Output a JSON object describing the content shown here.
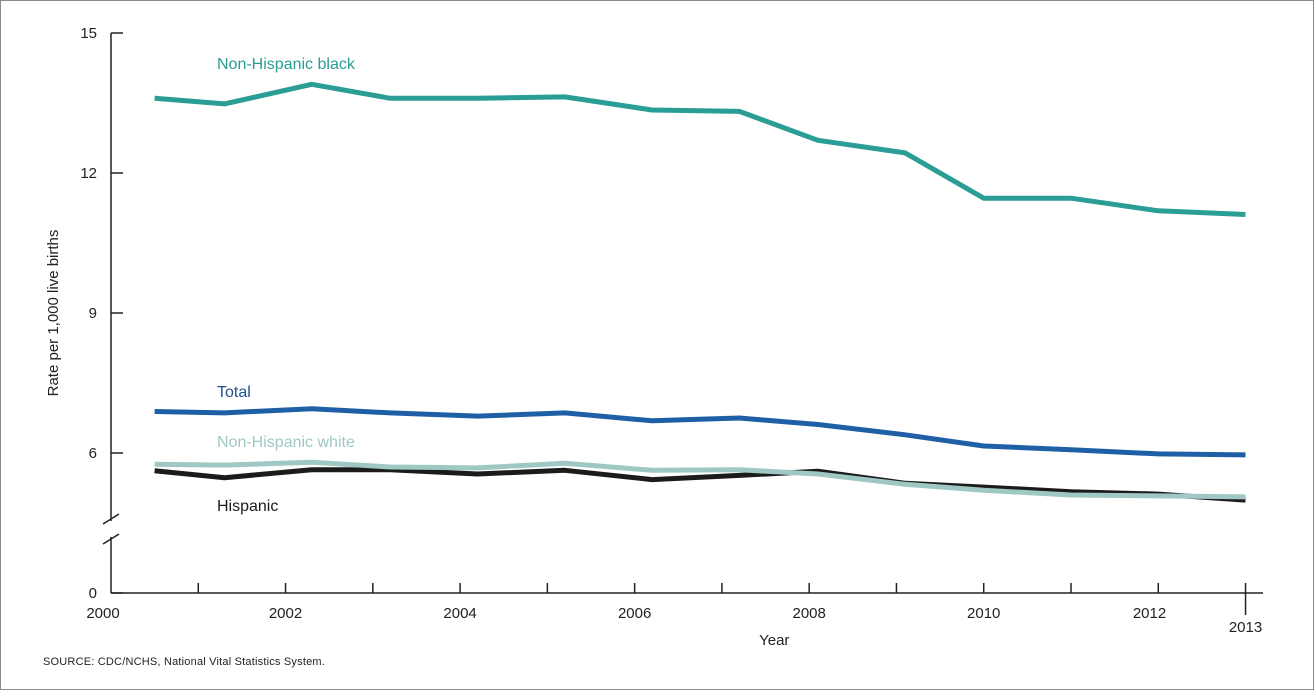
{
  "chart_data": {
    "type": "line",
    "title": "",
    "xlabel": "Year",
    "ylabel": "Rate per 1,000 live births",
    "x": [
      2000.5,
      2001.3,
      2002.3,
      2003.2,
      2004.2,
      2005.2,
      2006.2,
      2007.2,
      2008.1,
      2009.1,
      2010.0,
      2011.0,
      2012.0,
      2013.0
    ],
    "xlim": [
      2000,
      2013.2
    ],
    "x_ticks": [
      "2000",
      "2002",
      "2004",
      "2006",
      "2008",
      "2010",
      "2012",
      "2013"
    ],
    "ylim": [
      0,
      15
    ],
    "y_ticks": [
      "0",
      "6",
      "9",
      "12",
      "15"
    ],
    "y_axis_break": "between 0 and 6",
    "grid": false,
    "legend": "inline labels next to lines",
    "series": [
      {
        "name": "Non-Hispanic black",
        "color": "#2a9d94",
        "values": [
          13.6,
          13.48,
          13.9,
          13.6,
          13.6,
          13.63,
          13.35,
          13.32,
          12.7,
          12.43,
          11.46,
          11.46,
          11.19,
          11.11
        ]
      },
      {
        "name": "Total",
        "color": "#1f5fa6",
        "values": [
          6.89,
          6.86,
          6.95,
          6.86,
          6.79,
          6.86,
          6.69,
          6.75,
          6.61,
          6.39,
          6.15,
          6.07,
          5.98,
          5.96
        ]
      },
      {
        "name": "Non-Hispanic white",
        "color": "#9fc8c3",
        "values": [
          5.76,
          5.74,
          5.8,
          5.7,
          5.68,
          5.78,
          5.63,
          5.64,
          5.55,
          5.33,
          5.2,
          5.1,
          5.08,
          5.06
        ]
      },
      {
        "name": "Hispanic",
        "color": "#1b1b1b",
        "values": [
          5.62,
          5.47,
          5.64,
          5.64,
          5.55,
          5.63,
          5.43,
          5.52,
          5.61,
          5.35,
          5.27,
          5.17,
          5.12,
          4.99
        ]
      }
    ]
  },
  "source_note": "SOURCE: CDC/NCHS, National Vital Statistics System."
}
